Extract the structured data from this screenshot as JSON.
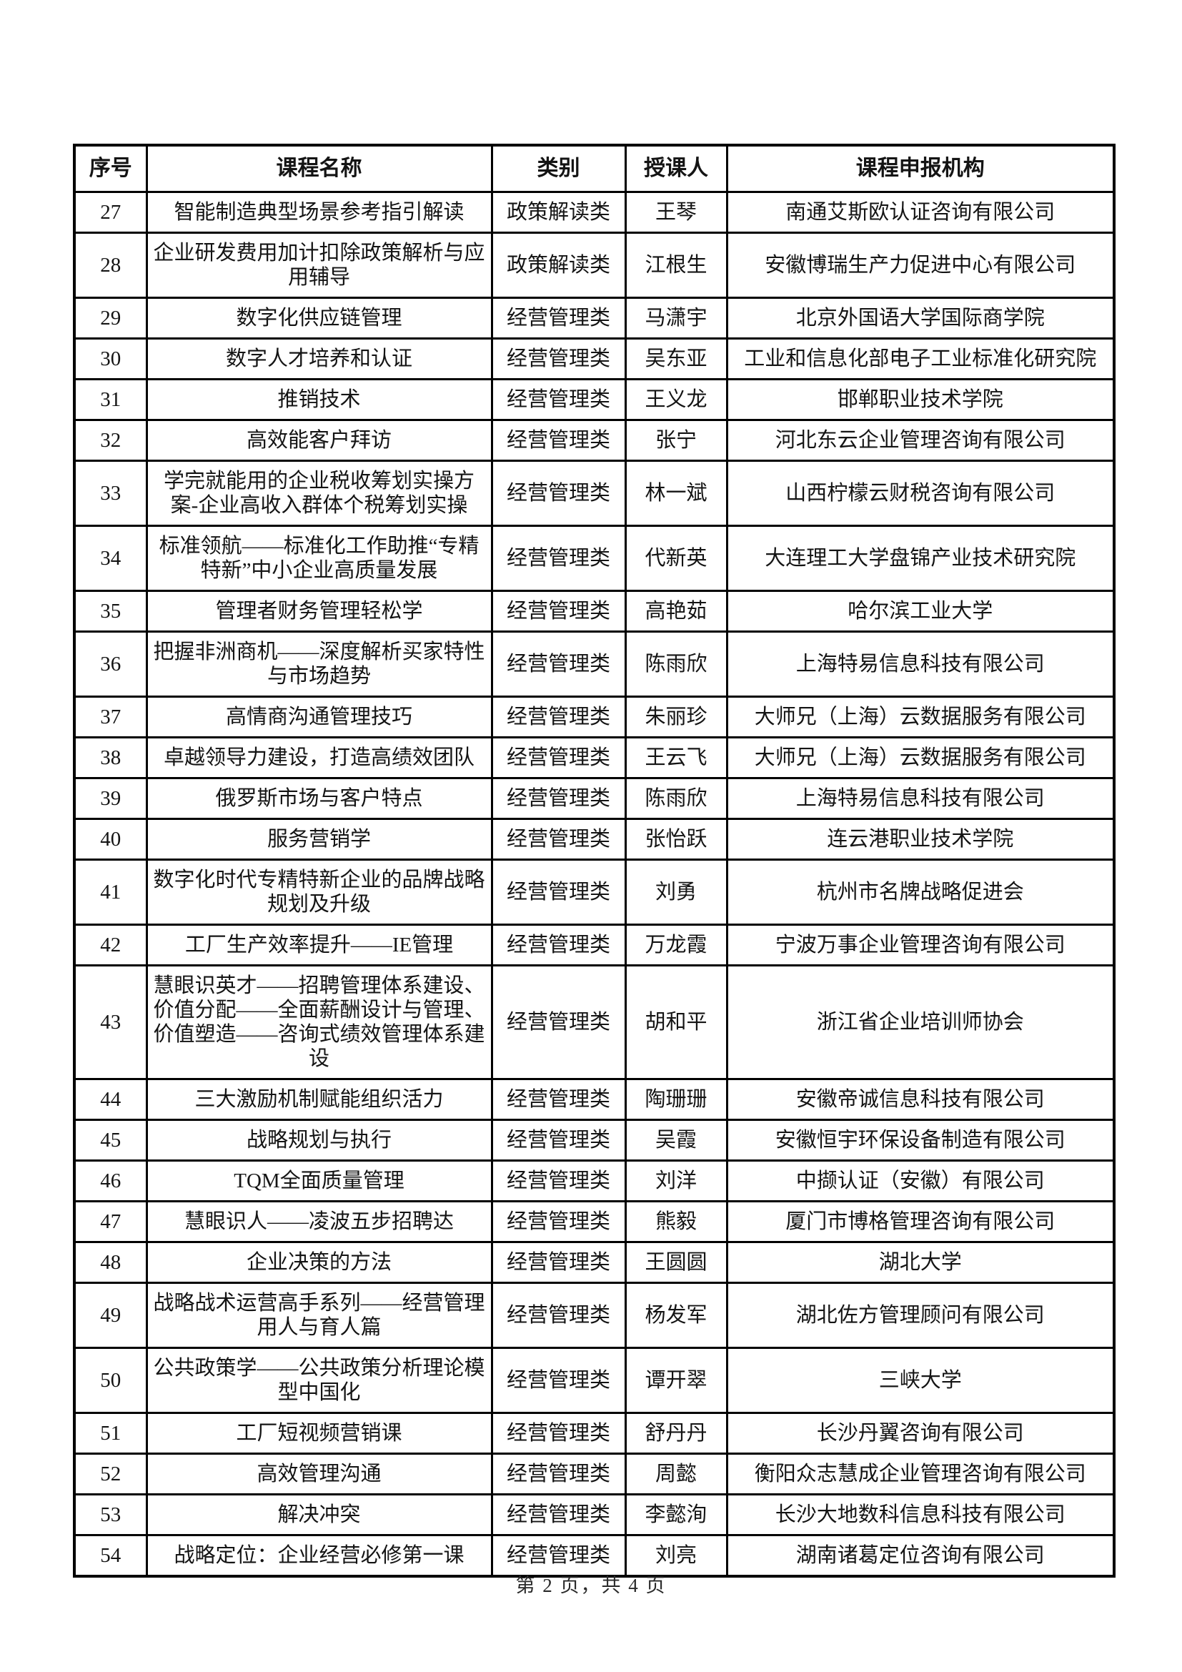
{
  "document": {
    "footer": {
      "page_indicator": "第 2 页，共 4 页"
    },
    "table": {
      "columns": [
        "序号",
        "课程名称",
        "类别",
        "授课人",
        "课程申报机构"
      ],
      "rows": [
        {
          "no": "27",
          "course": "智能制造典型场景参考指引解读",
          "category": "政策解读类",
          "instructor": "王琴",
          "org": "南通艾斯欧认证咨询有限公司"
        },
        {
          "no": "28",
          "course": "企业研发费用加计扣除政策解析与应用辅导",
          "category": "政策解读类",
          "instructor": "江根生",
          "org": "安徽博瑞生产力促进中心有限公司"
        },
        {
          "no": "29",
          "course": "数字化供应链管理",
          "category": "经营管理类",
          "instructor": "马潇宇",
          "org": "北京外国语大学国际商学院"
        },
        {
          "no": "30",
          "course": "数字人才培养和认证",
          "category": "经营管理类",
          "instructor": "吴东亚",
          "org": "工业和信息化部电子工业标准化研究院"
        },
        {
          "no": "31",
          "course": "推销技术",
          "category": "经营管理类",
          "instructor": "王义龙",
          "org": "邯郸职业技术学院"
        },
        {
          "no": "32",
          "course": "高效能客户拜访",
          "category": "经营管理类",
          "instructor": "张宁",
          "org": "河北东云企业管理咨询有限公司"
        },
        {
          "no": "33",
          "course": "学完就能用的企业税收筹划实操方案-企业高收入群体个税筹划实操",
          "category": "经营管理类",
          "instructor": "林一斌",
          "org": "山西柠檬云财税咨询有限公司"
        },
        {
          "no": "34",
          "course": "标准领航——标准化工作助推“专精特新”中小企业高质量发展",
          "category": "经营管理类",
          "instructor": "代新英",
          "org": "大连理工大学盘锦产业技术研究院"
        },
        {
          "no": "35",
          "course": "管理者财务管理轻松学",
          "category": "经营管理类",
          "instructor": "高艳茹",
          "org": "哈尔滨工业大学"
        },
        {
          "no": "36",
          "course": "把握非洲商机——深度解析买家特性与市场趋势",
          "category": "经营管理类",
          "instructor": "陈雨欣",
          "org": "上海特易信息科技有限公司"
        },
        {
          "no": "37",
          "course": "高情商沟通管理技巧",
          "category": "经营管理类",
          "instructor": "朱丽珍",
          "org": "大师兄（上海）云数据服务有限公司"
        },
        {
          "no": "38",
          "course": "卓越领导力建设，打造高绩效团队",
          "category": "经营管理类",
          "instructor": "王云飞",
          "org": "大师兄（上海）云数据服务有限公司"
        },
        {
          "no": "39",
          "course": "俄罗斯市场与客户特点",
          "category": "经营管理类",
          "instructor": "陈雨欣",
          "org": "上海特易信息科技有限公司"
        },
        {
          "no": "40",
          "course": "服务营销学",
          "category": "经营管理类",
          "instructor": "张怡跃",
          "org": "连云港职业技术学院"
        },
        {
          "no": "41",
          "course": "数字化时代专精特新企业的品牌战略规划及升级",
          "category": "经营管理类",
          "instructor": "刘勇",
          "org": "杭州市名牌战略促进会"
        },
        {
          "no": "42",
          "course": "工厂生产效率提升——IE管理",
          "category": "经营管理类",
          "instructor": "万龙霞",
          "org": "宁波万事企业管理咨询有限公司"
        },
        {
          "no": "43",
          "course": "慧眼识英才——招聘管理体系建设、价值分配——全面薪酬设计与管理、价值塑造——咨询式绩效管理体系建设",
          "category": "经营管理类",
          "instructor": "胡和平",
          "org": "浙江省企业培训师协会"
        },
        {
          "no": "44",
          "course": "三大激励机制赋能组织活力",
          "category": "经营管理类",
          "instructor": "陶珊珊",
          "org": "安徽帝诚信息科技有限公司"
        },
        {
          "no": "45",
          "course": "战略规划与执行",
          "category": "经营管理类",
          "instructor": "吴霞",
          "org": "安徽恒宇环保设备制造有限公司"
        },
        {
          "no": "46",
          "course": "TQM全面质量管理",
          "category": "经营管理类",
          "instructor": "刘洋",
          "org": "中撷认证（安徽）有限公司"
        },
        {
          "no": "47",
          "course": "慧眼识人——凌波五步招聘达",
          "category": "经营管理类",
          "instructor": "熊毅",
          "org": "厦门市博格管理咨询有限公司"
        },
        {
          "no": "48",
          "course": "企业决策的方法",
          "category": "经营管理类",
          "instructor": "王圆圆",
          "org": "湖北大学"
        },
        {
          "no": "49",
          "course": "战略战术运营高手系列——经营管理用人与育人篇",
          "category": "经营管理类",
          "instructor": "杨发军",
          "org": "湖北佐方管理顾问有限公司"
        },
        {
          "no": "50",
          "course": "公共政策学——公共政策分析理论模型中国化",
          "category": "经营管理类",
          "instructor": "谭开翠",
          "org": "三峡大学"
        },
        {
          "no": "51",
          "course": "工厂短视频营销课",
          "category": "经营管理类",
          "instructor": "舒丹丹",
          "org": "长沙丹翼咨询有限公司"
        },
        {
          "no": "52",
          "course": "高效管理沟通",
          "category": "经营管理类",
          "instructor": "周懿",
          "org": "衡阳众志慧成企业管理咨询有限公司"
        },
        {
          "no": "53",
          "course": "解决冲突",
          "category": "经营管理类",
          "instructor": "李懿洵",
          "org": "长沙大地数科信息科技有限公司"
        },
        {
          "no": "54",
          "course": "战略定位：企业经营必修第一课",
          "category": "经营管理类",
          "instructor": "刘亮",
          "org": "湖南诸葛定位咨询有限公司"
        }
      ]
    }
  }
}
